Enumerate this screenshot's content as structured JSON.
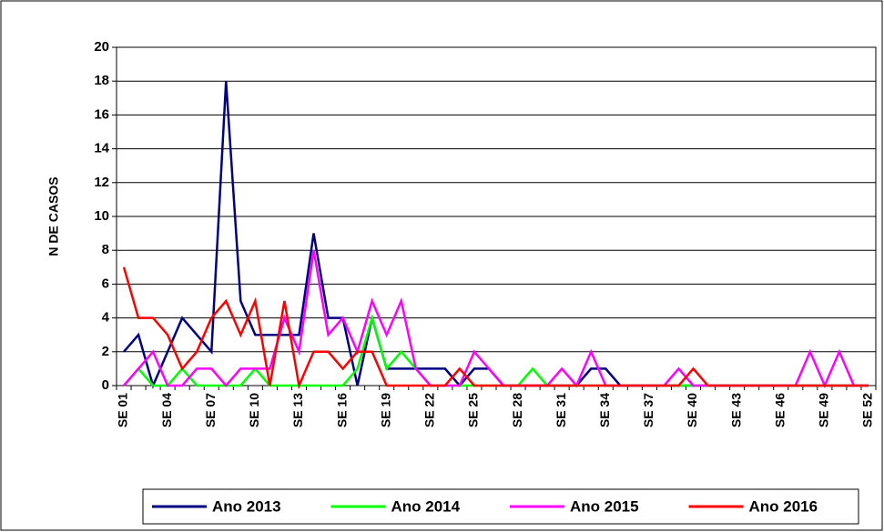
{
  "chart_data": {
    "type": "line",
    "ylabel": "N DE CASOS",
    "categories": [
      "SE 01",
      null,
      null,
      "SE 04",
      null,
      null,
      "SE 07",
      null,
      null,
      "SE 10",
      null,
      null,
      "SE 13",
      null,
      null,
      "SE 16",
      null,
      null,
      "SE 19",
      null,
      null,
      "SE 22",
      null,
      null,
      "SE 25",
      null,
      null,
      "SE 28",
      null,
      null,
      "SE 31",
      null,
      null,
      "SE 34",
      null,
      null,
      "SE 37",
      null,
      null,
      "SE 40",
      null,
      null,
      "SE 43",
      null,
      null,
      "SE 46",
      null,
      null,
      "SE 49",
      null,
      null,
      "SE 52"
    ],
    "series": [
      {
        "name": "Ano 2013",
        "color": "#000080",
        "values": [
          2,
          3,
          0,
          2,
          4,
          3,
          2,
          18,
          5,
          3,
          3,
          3,
          3,
          9,
          4,
          4,
          0,
          4,
          1,
          1,
          1,
          1,
          1,
          0,
          1,
          1,
          0,
          0,
          0,
          0,
          0,
          0,
          1,
          1,
          0,
          0,
          0,
          0,
          0,
          0,
          0,
          0,
          0,
          0,
          0,
          0,
          0,
          0,
          0,
          0,
          0,
          0
        ]
      },
      {
        "name": "Ano 2014",
        "color": "#00ff00",
        "values": [
          0,
          1,
          0,
          0,
          1,
          0,
          0,
          0,
          0,
          1,
          0,
          0,
          0,
          0,
          0,
          0,
          1,
          4,
          1,
          2,
          1,
          0,
          0,
          0,
          0,
          0,
          0,
          0,
          1,
          0,
          0,
          0,
          0,
          0,
          0,
          0,
          0,
          0,
          0,
          0,
          0,
          0,
          0,
          0,
          0,
          0,
          0,
          0,
          0,
          0,
          0,
          0
        ]
      },
      {
        "name": "Ano 2015",
        "color": "#ff00ff",
        "values": [
          0,
          1,
          2,
          0,
          0,
          1,
          1,
          0,
          1,
          1,
          1,
          4,
          2,
          8,
          3,
          4,
          2,
          5,
          3,
          5,
          1,
          0,
          0,
          0,
          2,
          1,
          0,
          0,
          0,
          0,
          1,
          0,
          2,
          0,
          0,
          0,
          0,
          0,
          1,
          0,
          0,
          0,
          0,
          0,
          0,
          0,
          0,
          2,
          0,
          2,
          0,
          0
        ]
      },
      {
        "name": "Ano 2016",
        "color": "#ff0000",
        "values": [
          7,
          4,
          4,
          3,
          1,
          2,
          4,
          5,
          3,
          5,
          0,
          5,
          0,
          2,
          2,
          1,
          2,
          2,
          0,
          0,
          0,
          0,
          0,
          1,
          0,
          0,
          0,
          0,
          0,
          0,
          0,
          0,
          0,
          0,
          0,
          0,
          0,
          0,
          0,
          1,
          0,
          0,
          0,
          0,
          0,
          0,
          0,
          0,
          0,
          0,
          0,
          0
        ]
      }
    ],
    "ylim": [
      0,
      20
    ],
    "yticks": [
      0,
      2,
      4,
      6,
      8,
      10,
      12,
      14,
      16,
      18,
      20
    ],
    "grid": true,
    "legend": "bottom"
  }
}
